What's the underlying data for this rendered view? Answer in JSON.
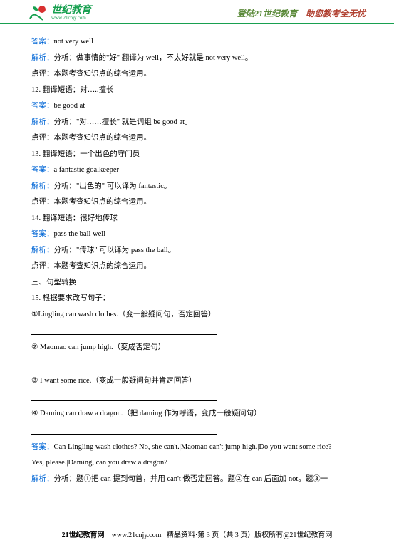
{
  "header": {
    "logo_cn": "世纪教育",
    "logo_en": "www.21cnjy.com",
    "slogan_left": "登陆21世纪教育",
    "slogan_right": "助您教考全无忧"
  },
  "lines": [
    {
      "cls": "line",
      "parts": [
        {
          "t": "答案：",
          "c": "blue"
        },
        {
          "t": "not very well"
        }
      ]
    },
    {
      "cls": "line",
      "parts": [
        {
          "t": "解析：",
          "c": "blue"
        },
        {
          "t": "分析：做事情的\"好\" 翻译为 well，不太好就是 not very well。"
        }
      ]
    },
    {
      "cls": "line",
      "parts": [
        {
          "t": "点评：本题考查知识点的综合运用。"
        }
      ]
    },
    {
      "cls": "line",
      "parts": [
        {
          "t": "12. 翻译短语：对…..擅长"
        }
      ]
    },
    {
      "cls": "line",
      "parts": [
        {
          "t": "答案：",
          "c": "blue"
        },
        {
          "t": "be good at"
        }
      ]
    },
    {
      "cls": "line",
      "parts": [
        {
          "t": "解析：",
          "c": "blue"
        },
        {
          "t": "分析：\"对……擅长\" 就是词组 be good at。"
        }
      ]
    },
    {
      "cls": "line",
      "parts": [
        {
          "t": "点评：本题考查知识点的综合运用。"
        }
      ]
    },
    {
      "cls": "line",
      "parts": [
        {
          "t": "13. 翻译短语：一个出色的守门员"
        }
      ]
    },
    {
      "cls": "line",
      "parts": [
        {
          "t": "答案：",
          "c": "blue"
        },
        {
          "t": "a fantastic goalkeeper"
        }
      ]
    },
    {
      "cls": "line",
      "parts": [
        {
          "t": "解析：",
          "c": "blue"
        },
        {
          "t": "分析：\"出色的\" 可以译为 fantastic。"
        }
      ]
    },
    {
      "cls": "line",
      "parts": [
        {
          "t": "点评：本题考查知识点的综合运用。"
        }
      ]
    },
    {
      "cls": "line",
      "parts": [
        {
          "t": "14. 翻译短语：很好地传球"
        }
      ]
    },
    {
      "cls": "line",
      "parts": [
        {
          "t": "答案：",
          "c": "blue"
        },
        {
          "t": "pass the ball well"
        }
      ]
    },
    {
      "cls": "line",
      "parts": [
        {
          "t": "解析：",
          "c": "blue"
        },
        {
          "t": "分析：\"传球\" 可以译为 pass the ball。"
        }
      ]
    },
    {
      "cls": "line",
      "parts": [
        {
          "t": "点评：本题考查知识点的综合运用。"
        }
      ]
    },
    {
      "cls": "line",
      "parts": [
        {
          "t": "三、句型转换"
        }
      ]
    },
    {
      "cls": "line",
      "parts": [
        {
          "t": "15. 根据要求改写句子："
        }
      ]
    },
    {
      "cls": "line",
      "parts": [
        {
          "t": "①Lingling can wash clothes.（变一般疑问句，否定回答）"
        }
      ]
    },
    {
      "cls": "blank"
    },
    {
      "cls": "line",
      "parts": [
        {
          "t": "② Maomao can jump high.（变成否定句）"
        }
      ]
    },
    {
      "cls": "blank"
    },
    {
      "cls": "line",
      "parts": [
        {
          "t": "③ I want some rice.（变成一般疑问句并肯定回答）"
        }
      ]
    },
    {
      "cls": "blank"
    },
    {
      "cls": "line",
      "parts": [
        {
          "t": "④ Daming can draw a dragon.（把 daming 作为呼语，变成一般疑问句）"
        }
      ]
    },
    {
      "cls": "blank"
    },
    {
      "cls": "line",
      "parts": [
        {
          "t": "答案：",
          "c": "blue"
        },
        {
          "t": "Can Lingling wash clothes? No, she can't.|Maomao can't jump high.|Do you want some rice?"
        }
      ]
    },
    {
      "cls": "line",
      "parts": [
        {
          "t": "Yes, please.|Daming, can you draw a dragon?"
        }
      ]
    },
    {
      "cls": "line",
      "parts": [
        {
          "t": "解析：",
          "c": "blue"
        },
        {
          "t": "分析：题①把 can 提到句首，并用 can't 做否定回答。题②在 can 后面加 not。题③一"
        }
      ]
    }
  ],
  "footer": {
    "site": "21世纪教育网",
    "url": "www.21cnjy.com",
    "mid": "精品资料·第 3 页（共 3 页）版权所有@21世纪教育网"
  }
}
